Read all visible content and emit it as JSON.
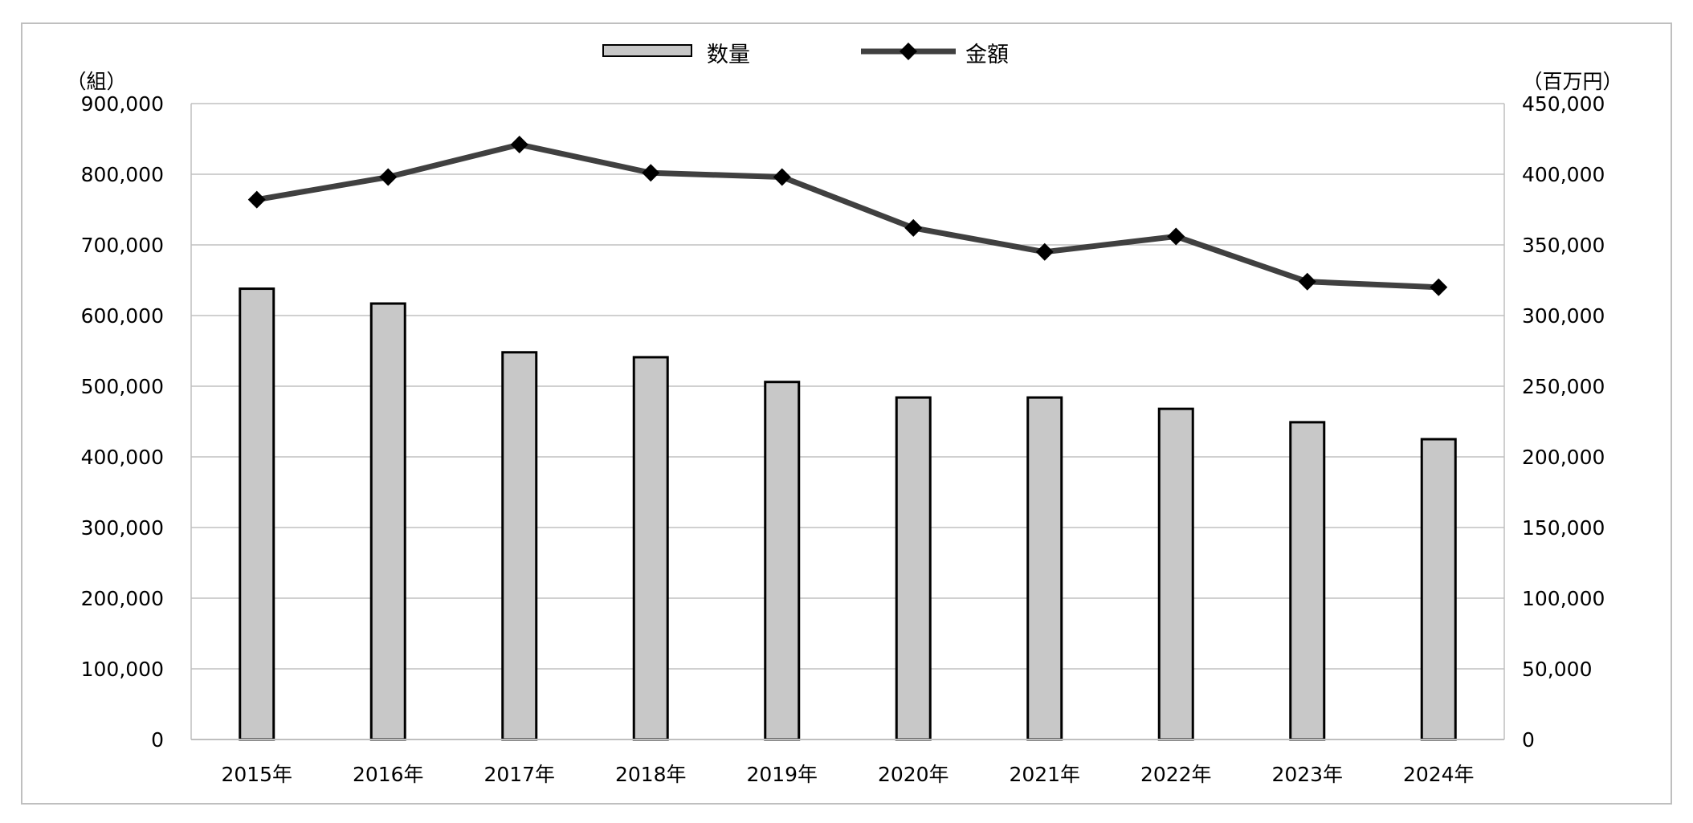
{
  "chart_data": {
    "type": "bar",
    "categories": [
      "2015年",
      "2016年",
      "2017年",
      "2018年",
      "2019年",
      "2020年",
      "2021年",
      "2022年",
      "2023年",
      "2024年"
    ],
    "series": [
      {
        "name": "数量",
        "type": "bar",
        "axis": "left",
        "values": [
          638000,
          617000,
          548000,
          541000,
          506000,
          484000,
          484000,
          468000,
          449000,
          425000
        ],
        "color": "#c8c8c8"
      },
      {
        "name": "金額",
        "type": "line",
        "axis": "right",
        "values": [
          382000,
          398000,
          421000,
          401000,
          398000,
          362000,
          345000,
          356000,
          324000,
          320000
        ],
        "color": "#404040",
        "marker": "diamond"
      }
    ],
    "y_left": {
      "unit": "（組）",
      "ylim": [
        0,
        900000
      ],
      "ticks": [
        "0",
        "100,000",
        "200,000",
        "300,000",
        "400,000",
        "500,000",
        "600,000",
        "700,000",
        "800,000",
        "900,000"
      ]
    },
    "y_right": {
      "unit": "（百万円）",
      "ylim": [
        0,
        450000
      ],
      "ticks": [
        "0",
        "50,000",
        "100,000",
        "150,000",
        "200,000",
        "250,000",
        "300,000",
        "350,000",
        "400,000",
        "450,000"
      ]
    },
    "grid": true,
    "legend": "top-center",
    "title": "",
    "xlabel": ""
  }
}
